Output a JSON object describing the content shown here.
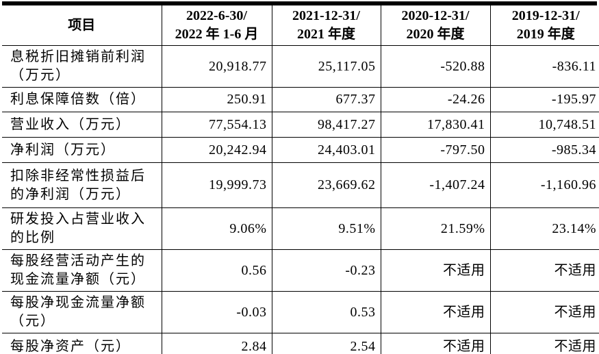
{
  "table": {
    "header": [
      "项目",
      "2022-6-30/\n2022 年 1-6 月",
      "2021-12-31/\n2021 年度",
      "2020-12-31/\n2020 年度",
      "2019-12-31/\n2019 年度"
    ],
    "rows": [
      {
        "label": "息税折旧摊销前利润\n（万元）",
        "values": [
          "20,918.77",
          "25,117.05",
          "-520.88",
          "-836.11"
        ]
      },
      {
        "label": "利息保障倍数（倍）",
        "values": [
          "250.91",
          "677.37",
          "-24.26",
          "-195.97"
        ]
      },
      {
        "label": "营业收入（万元）",
        "values": [
          "77,554.13",
          "98,417.27",
          "17,830.41",
          "10,748.51"
        ]
      },
      {
        "label": "净利润（万元）",
        "values": [
          "20,242.94",
          "24,403.01",
          "-797.50",
          "-985.34"
        ]
      },
      {
        "label": "扣除非经常性损益后\n的净利润（万元）",
        "values": [
          "19,999.73",
          "23,669.62",
          "-1,407.24",
          "-1,160.96"
        ]
      },
      {
        "label": "研发投入占营业收入\n的比例",
        "values": [
          "9.06%",
          "9.51%",
          "21.59%",
          "23.14%"
        ]
      },
      {
        "label": "每股经营活动产生的\n现金流量净额（元）",
        "values": [
          "0.56",
          "-0.23",
          "不适用",
          "不适用"
        ]
      },
      {
        "label": "每股净现金流量净额\n（元）",
        "values": [
          "-0.03",
          "0.53",
          "不适用",
          "不适用"
        ]
      },
      {
        "label": "每股净资产（元）",
        "values": [
          "2.84",
          "2.54",
          "不适用",
          "不适用"
        ]
      }
    ]
  },
  "colors": {
    "text": "#000000",
    "border": "#000000",
    "background": "#ffffff"
  }
}
